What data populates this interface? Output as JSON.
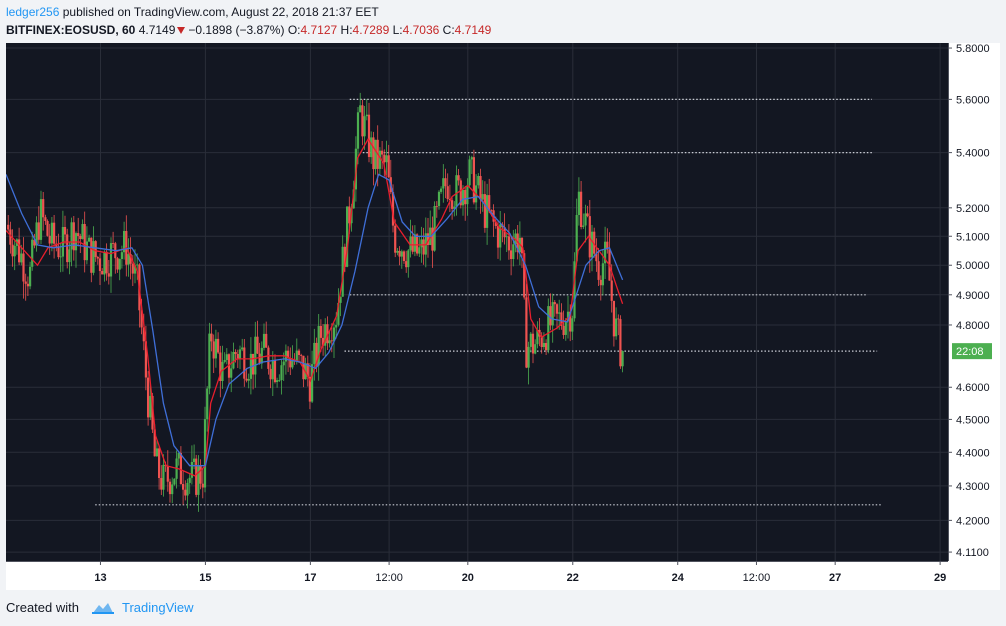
{
  "header": {
    "author": "ledger256",
    "published_text": "published on TradingView.com, August 22, 2018 21:37 EET",
    "symbol": "BITFINEX:EOSUSD, 60",
    "last_price": "4.7149",
    "change": "−0.1898 (−3.87%)",
    "ohlc": [
      {
        "label": "O:",
        "value": "4.7127"
      },
      {
        "label": "H:",
        "value": "4.7289"
      },
      {
        "label": "L:",
        "value": "4.7036"
      },
      {
        "label": "C:",
        "value": "4.7149"
      }
    ]
  },
  "footer": {
    "created_with": "Created with",
    "brand": "TradingView"
  },
  "colors": {
    "background": "#131722",
    "grid": "#2a2e39",
    "up_candle": "#4caf50",
    "down_candle": "#ef5350",
    "ma_fast": "#e91e2d",
    "ma_slow": "#3f6fd8",
    "level_line": "#c9ccd4",
    "price_label_bg": "#4caf50"
  },
  "chart_data": {
    "type": "candlestick",
    "symbol": "BITFINEX:EOSUSD",
    "interval": "60",
    "price_axis": {
      "ticks": [
        "5.8000",
        "5.6000",
        "5.4000",
        "5.2000",
        "5.1000",
        "5.0000",
        "4.9000",
        "4.8000",
        "4.6000",
        "4.5000",
        "4.4000",
        "4.3000",
        "4.2000",
        "4.1100"
      ],
      "scale": "log",
      "range": [
        4.085,
        5.82
      ]
    },
    "time_axis": {
      "ticks": [
        {
          "label": "13",
          "day": 13
        },
        {
          "label": "15",
          "day": 15
        },
        {
          "label": "17",
          "day": 17
        },
        {
          "label": "12:00",
          "day": 18.5
        },
        {
          "label": "20",
          "day": 20
        },
        {
          "label": "22",
          "day": 22
        },
        {
          "label": "24",
          "day": 24
        },
        {
          "label": "12:00",
          "day": 25.5
        },
        {
          "label": "27",
          "day": 27
        },
        {
          "label": "29",
          "day": 29
        }
      ],
      "range_days": [
        11.2,
        29.15
      ]
    },
    "current_price_label": "22:08",
    "current_price": 4.7149,
    "horizontal_levels": [
      {
        "price": 5.6,
        "from_day": 17.75,
        "to_day": 27.7
      },
      {
        "price": 5.4,
        "from_day": 18.0,
        "to_day": 27.7
      },
      {
        "price": 4.9,
        "from_day": 17.75,
        "to_day": 27.6
      },
      {
        "price": 4.715,
        "from_day": 17.65,
        "to_day": 27.8
      },
      {
        "price": 4.245,
        "from_day": 12.9,
        "to_day": 27.9
      }
    ],
    "close_path": [
      [
        11.2,
        5.14
      ],
      [
        11.45,
        5.05
      ],
      [
        11.65,
        4.96
      ],
      [
        11.85,
        5.18
      ],
      [
        12.05,
        5.08
      ],
      [
        12.3,
        5.06
      ],
      [
        12.5,
        5.13
      ],
      [
        12.8,
        5.04
      ],
      [
        13.0,
        5.02
      ],
      [
        13.2,
        5.04
      ],
      [
        13.5,
        5.06
      ],
      [
        13.7,
        4.93
      ],
      [
        13.9,
        4.58
      ],
      [
        14.05,
        4.36
      ],
      [
        14.2,
        4.31
      ],
      [
        14.45,
        4.35
      ],
      [
        14.75,
        4.32
      ],
      [
        14.95,
        4.34
      ],
      [
        15.1,
        4.78
      ],
      [
        15.35,
        4.63
      ],
      [
        15.6,
        4.72
      ],
      [
        15.85,
        4.68
      ],
      [
        16.1,
        4.71
      ],
      [
        16.35,
        4.67
      ],
      [
        16.6,
        4.7
      ],
      [
        16.85,
        4.66
      ],
      [
        17.0,
        4.62
      ],
      [
        17.2,
        4.77
      ],
      [
        17.5,
        4.84
      ],
      [
        17.75,
        5.2
      ],
      [
        17.95,
        5.55
      ],
      [
        18.2,
        5.38
      ],
      [
        18.45,
        5.35
      ],
      [
        18.6,
        5.1
      ],
      [
        18.85,
        5.05
      ],
      [
        19.1,
        5.04
      ],
      [
        19.35,
        5.12
      ],
      [
        19.6,
        5.3
      ],
      [
        19.8,
        5.25
      ],
      [
        20.05,
        5.32
      ],
      [
        20.3,
        5.2
      ],
      [
        20.55,
        5.12
      ],
      [
        20.8,
        5.08
      ],
      [
        21.0,
        5.1
      ],
      [
        21.1,
        4.73
      ],
      [
        21.3,
        4.74
      ],
      [
        21.55,
        4.8
      ],
      [
        21.8,
        4.82
      ],
      [
        22.0,
        4.86
      ],
      [
        22.1,
        5.25
      ],
      [
        22.3,
        5.1
      ],
      [
        22.5,
        5.0
      ],
      [
        22.65,
        5.02
      ],
      [
        22.8,
        4.8
      ],
      [
        22.9,
        4.73
      ],
      [
        22.95,
        4.714
      ]
    ],
    "moving_averages": [
      {
        "name": "fast",
        "values": [
          [
            11.2,
            5.12
          ],
          [
            11.5,
            5.06
          ],
          [
            11.8,
            5.0
          ],
          [
            12.0,
            5.06
          ],
          [
            12.3,
            5.08
          ],
          [
            12.6,
            5.08
          ],
          [
            12.9,
            5.05
          ],
          [
            13.2,
            5.04
          ],
          [
            13.5,
            5.06
          ],
          [
            13.7,
            4.98
          ],
          [
            13.9,
            4.7
          ],
          [
            14.05,
            4.45
          ],
          [
            14.25,
            4.36
          ],
          [
            14.5,
            4.35
          ],
          [
            14.8,
            4.33
          ],
          [
            15.0,
            4.36
          ],
          [
            15.1,
            4.55
          ],
          [
            15.3,
            4.65
          ],
          [
            15.6,
            4.69
          ],
          [
            15.9,
            4.69
          ],
          [
            16.2,
            4.7
          ],
          [
            16.5,
            4.7
          ],
          [
            16.8,
            4.68
          ],
          [
            17.0,
            4.62
          ],
          [
            17.2,
            4.72
          ],
          [
            17.5,
            4.83
          ],
          [
            17.7,
            5.05
          ],
          [
            17.9,
            5.38
          ],
          [
            18.1,
            5.45
          ],
          [
            18.4,
            5.36
          ],
          [
            18.6,
            5.15
          ],
          [
            18.9,
            5.07
          ],
          [
            19.2,
            5.07
          ],
          [
            19.5,
            5.16
          ],
          [
            19.7,
            5.24
          ],
          [
            20.0,
            5.28
          ],
          [
            20.3,
            5.22
          ],
          [
            20.6,
            5.13
          ],
          [
            20.9,
            5.09
          ],
          [
            21.05,
            5.06
          ],
          [
            21.2,
            4.82
          ],
          [
            21.4,
            4.76
          ],
          [
            21.7,
            4.79
          ],
          [
            21.95,
            4.83
          ],
          [
            22.1,
            5.05
          ],
          [
            22.3,
            5.1
          ],
          [
            22.5,
            5.05
          ],
          [
            22.7,
            5.0
          ],
          [
            22.85,
            4.92
          ],
          [
            22.95,
            4.87
          ]
        ]
      },
      {
        "name": "slow",
        "values": [
          [
            11.2,
            5.32
          ],
          [
            11.5,
            5.18
          ],
          [
            11.8,
            5.07
          ],
          [
            12.1,
            5.06
          ],
          [
            12.5,
            5.07
          ],
          [
            12.9,
            5.06
          ],
          [
            13.3,
            5.05
          ],
          [
            13.6,
            5.06
          ],
          [
            13.8,
            5.0
          ],
          [
            14.0,
            4.78
          ],
          [
            14.2,
            4.55
          ],
          [
            14.4,
            4.42
          ],
          [
            14.7,
            4.36
          ],
          [
            15.0,
            4.36
          ],
          [
            15.2,
            4.5
          ],
          [
            15.45,
            4.61
          ],
          [
            15.8,
            4.66
          ],
          [
            16.1,
            4.68
          ],
          [
            16.5,
            4.69
          ],
          [
            16.8,
            4.68
          ],
          [
            17.1,
            4.66
          ],
          [
            17.35,
            4.71
          ],
          [
            17.6,
            4.8
          ],
          [
            17.85,
            4.98
          ],
          [
            18.1,
            5.2
          ],
          [
            18.3,
            5.32
          ],
          [
            18.5,
            5.3
          ],
          [
            18.75,
            5.15
          ],
          [
            19.0,
            5.1
          ],
          [
            19.3,
            5.1
          ],
          [
            19.6,
            5.16
          ],
          [
            19.9,
            5.23
          ],
          [
            20.2,
            5.24
          ],
          [
            20.5,
            5.17
          ],
          [
            20.8,
            5.11
          ],
          [
            21.1,
            5.0
          ],
          [
            21.35,
            4.86
          ],
          [
            21.6,
            4.82
          ],
          [
            21.9,
            4.81
          ],
          [
            22.05,
            4.89
          ],
          [
            22.25,
            5.0
          ],
          [
            22.5,
            5.05
          ],
          [
            22.7,
            5.06
          ],
          [
            22.95,
            4.95
          ]
        ]
      }
    ]
  }
}
